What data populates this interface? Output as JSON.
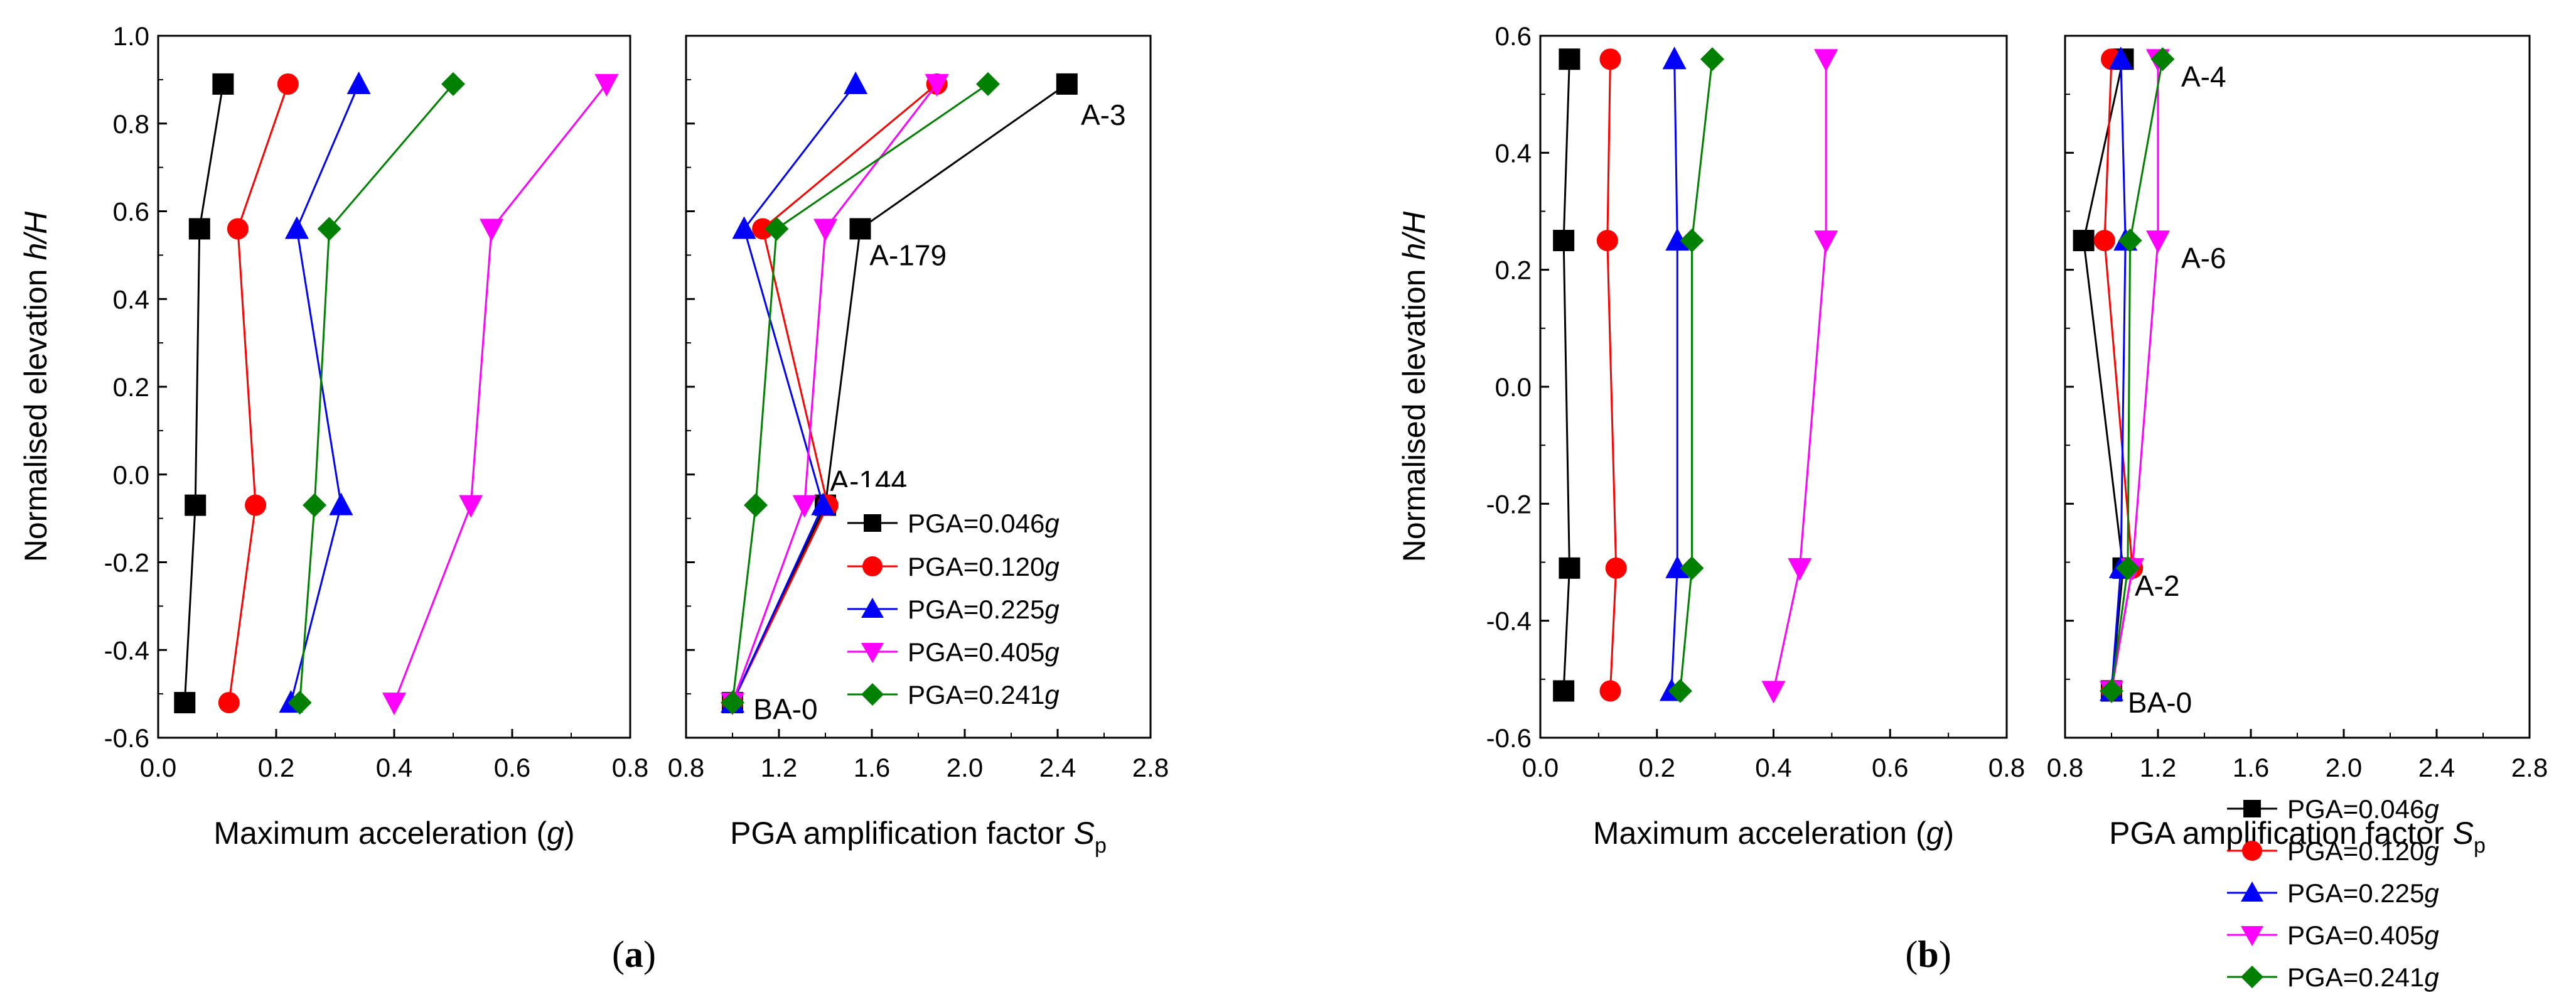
{
  "figure": {
    "sublabels": {
      "a": {
        "open": "(",
        "letter": "a",
        "close": ")"
      },
      "b": {
        "open": "(",
        "letter": "b",
        "close": ")"
      }
    },
    "legend": [
      {
        "prefix": "PGA=0.046",
        "unit": "g",
        "color": "#000000",
        "marker": "square"
      },
      {
        "prefix": "PGA=0.120",
        "unit": "g",
        "color": "#ff0000",
        "marker": "circle"
      },
      {
        "prefix": "PGA=0.225",
        "unit": "g",
        "color": "#0000ff",
        "marker": "triangle-up"
      },
      {
        "prefix": "PGA=0.405",
        "unit": "g",
        "color": "#ff00ff",
        "marker": "triangle-down"
      },
      {
        "prefix": "PGA=0.241",
        "unit": "g",
        "color": "#008000",
        "marker": "diamond"
      }
    ]
  },
  "chart_data": [
    {
      "id": "a-acc",
      "type": "line",
      "xlabel": {
        "pre": "Maximum acceleration (",
        "var": "g",
        "post": ")"
      },
      "ylabel": {
        "pre": "Normalised elevation ",
        "var": "h/H"
      },
      "xlim": [
        0.0,
        0.8
      ],
      "ylim": [
        -0.6,
        1.0
      ],
      "xticks": [
        "0.0",
        "0.2",
        "0.4",
        "0.6",
        "0.8"
      ],
      "yticks": [
        "-0.6",
        "-0.4",
        "-0.2",
        "0.0",
        "0.2",
        "0.4",
        "0.6",
        "0.8",
        "1.0"
      ],
      "y": [
        -0.52,
        -0.07,
        0.56,
        0.89
      ],
      "series": [
        {
          "name": "PGA=0.046g",
          "x": [
            0.045,
            0.063,
            0.07,
            0.11
          ]
        },
        {
          "name": "PGA=0.120g",
          "x": [
            0.12,
            0.165,
            0.135,
            0.22
          ]
        },
        {
          "name": "PGA=0.225g",
          "x": [
            0.225,
            0.31,
            0.235,
            0.34
          ]
        },
        {
          "name": "PGA=0.405g",
          "x": [
            0.4,
            0.53,
            0.565,
            0.76
          ]
        },
        {
          "name": "PGA=0.241g",
          "x": [
            0.24,
            0.265,
            0.29,
            0.5
          ]
        }
      ]
    },
    {
      "id": "a-amp",
      "type": "line",
      "xlabel": {
        "pre": "PGA amplification factor ",
        "var": "S",
        "sub": "p"
      },
      "xlim": [
        0.8,
        2.8
      ],
      "ylim": [
        -0.6,
        1.0
      ],
      "xticks": [
        "0.8",
        "1.2",
        "1.6",
        "2.0",
        "2.4",
        "2.8"
      ],
      "y": [
        -0.52,
        -0.07,
        0.56,
        0.89
      ],
      "series": [
        {
          "name": "PGA=0.046g",
          "x": [
            1.0,
            1.4,
            1.55,
            2.44
          ]
        },
        {
          "name": "PGA=0.120g",
          "x": [
            1.0,
            1.41,
            1.13,
            1.88
          ]
        },
        {
          "name": "PGA=0.225g",
          "x": [
            1.0,
            1.39,
            1.05,
            1.53
          ]
        },
        {
          "name": "PGA=0.405g",
          "x": [
            1.0,
            1.31,
            1.4,
            1.88
          ]
        },
        {
          "name": "PGA=0.241g",
          "x": [
            1.0,
            1.1,
            1.19,
            2.1
          ]
        }
      ],
      "annotations": [
        {
          "text": "A-3",
          "x": 2.5,
          "y": 0.82
        },
        {
          "text": "A-179",
          "x": 1.59,
          "y": 0.5
        },
        {
          "text": "A-144",
          "x": 1.42,
          "y": -0.015
        },
        {
          "text": "BA-0",
          "x": 1.09,
          "y": -0.535
        }
      ]
    },
    {
      "id": "b-acc",
      "type": "line",
      "xlabel": {
        "pre": "Maximum acceleration (",
        "var": "g",
        "post": ")"
      },
      "ylabel": {
        "pre": "Normalised elevation ",
        "var": "h/H"
      },
      "xlim": [
        0.0,
        0.8
      ],
      "ylim": [
        -0.6,
        0.6
      ],
      "xticks": [
        "0.0",
        "0.2",
        "0.4",
        "0.6",
        "0.8"
      ],
      "yticks": [
        "-0.6",
        "-0.4",
        "-0.2",
        "0.0",
        "0.2",
        "0.4",
        "0.6"
      ],
      "y": [
        -0.52,
        -0.31,
        0.25,
        0.56
      ],
      "series": [
        {
          "name": "PGA=0.046g",
          "x": [
            0.04,
            0.05,
            0.04,
            0.05
          ]
        },
        {
          "name": "PGA=0.120g",
          "x": [
            0.12,
            0.13,
            0.115,
            0.12
          ]
        },
        {
          "name": "PGA=0.225g",
          "x": [
            0.225,
            0.235,
            0.235,
            0.23
          ]
        },
        {
          "name": "PGA=0.405g",
          "x": [
            0.4,
            0.445,
            0.49,
            0.49
          ]
        },
        {
          "name": "PGA=0.241g",
          "x": [
            0.24,
            0.26,
            0.26,
            0.295
          ]
        }
      ]
    },
    {
      "id": "b-amp",
      "type": "line",
      "xlabel": {
        "pre": "PGA amplification factor ",
        "var": "S",
        "sub": "p"
      },
      "xlim": [
        0.8,
        2.8
      ],
      "ylim": [
        -0.6,
        0.6
      ],
      "xticks": [
        "0.8",
        "1.2",
        "1.6",
        "2.0",
        "2.4",
        "2.8"
      ],
      "y": [
        -0.52,
        -0.31,
        0.25,
        0.56
      ],
      "series": [
        {
          "name": "PGA=0.046g",
          "x": [
            1.0,
            1.05,
            0.88,
            1.05
          ]
        },
        {
          "name": "PGA=0.120g",
          "x": [
            1.0,
            1.09,
            0.97,
            1.0
          ]
        },
        {
          "name": "PGA=0.225g",
          "x": [
            1.0,
            1.04,
            1.06,
            1.04
          ]
        },
        {
          "name": "PGA=0.405g",
          "x": [
            1.0,
            1.09,
            1.2,
            1.2
          ]
        },
        {
          "name": "PGA=0.241g",
          "x": [
            1.0,
            1.07,
            1.08,
            1.22
          ]
        }
      ],
      "annotations": [
        {
          "text": "A-4",
          "x": 1.3,
          "y": 0.53
        },
        {
          "text": "A-6",
          "x": 1.3,
          "y": 0.22
        },
        {
          "text": "A-2",
          "x": 1.1,
          "y": -0.34
        },
        {
          "text": "BA-0",
          "x": 1.07,
          "y": -0.54
        }
      ]
    }
  ]
}
